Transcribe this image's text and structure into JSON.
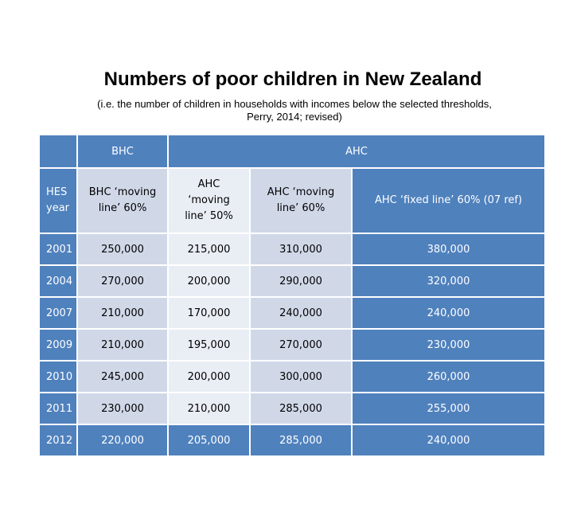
{
  "title": "Numbers of poor children in New Zealand",
  "subtitle_line1": "(i.e.  the number of children in households with incomes below the selected thresholds,",
  "subtitle_line2": "Perry, 2014; revised)",
  "group_headers": {
    "bhc": "BHC",
    "ahc": "AHC"
  },
  "column_headers": {
    "year": [
      "HES",
      "year"
    ],
    "bhc60": [
      "BHC ‘moving",
      "line’ 60%"
    ],
    "ahc50": [
      "AHC",
      "‘moving",
      "line’ 50%"
    ],
    "ahc60": [
      "AHC ‘moving",
      "line’ 60%"
    ],
    "ahcfixed": "AHC ‘fixed line’  60% (07 ref)"
  },
  "rows": [
    {
      "year": "2001",
      "bhc60": "250,000",
      "ahc50": "215,000",
      "ahc60": "310,000",
      "ahcfixed": "380,000"
    },
    {
      "year": "2004",
      "bhc60": "270,000",
      "ahc50": "200,000",
      "ahc60": "290,000",
      "ahcfixed": "320,000"
    },
    {
      "year": "2007",
      "bhc60": "210,000",
      "ahc50": "170,000",
      "ahc60": "240,000",
      "ahcfixed": "240,000"
    },
    {
      "year": "2009",
      "bhc60": "210,000",
      "ahc50": "195,000",
      "ahc60": "270,000",
      "ahcfixed": "230,000"
    },
    {
      "year": "2010",
      "bhc60": "245,000",
      "ahc50": "200,000",
      "ahc60": "300,000",
      "ahcfixed": "260,000"
    },
    {
      "year": "2011",
      "bhc60": "230,000",
      "ahc50": "210,000",
      "ahc60": "285,000",
      "ahcfixed": "255,000"
    },
    {
      "year": "2012",
      "bhc60": "220,000",
      "ahc50": "205,000",
      "ahc60": "285,000",
      "ahcfixed": "240,000"
    }
  ],
  "colors": {
    "header": "#4f81bd",
    "band_mid": "#d0d8e8",
    "band_light": "#e9edf4"
  }
}
